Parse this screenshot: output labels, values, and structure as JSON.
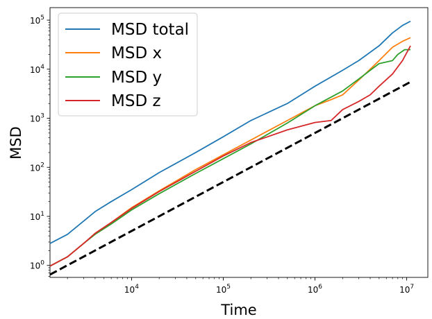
{
  "chart_data": {
    "type": "line",
    "title": "",
    "xlabel": "Time",
    "ylabel": "MSD",
    "xscale": "log",
    "yscale": "log",
    "xlim": [
      1290,
      17000000
    ],
    "ylim": [
      0.57,
      180000
    ],
    "grid": false,
    "legend_position": "top-left",
    "xticks": [
      {
        "value": 10000,
        "base": "10",
        "exp": "4"
      },
      {
        "value": 100000,
        "base": "10",
        "exp": "5"
      },
      {
        "value": 1000000,
        "base": "10",
        "exp": "6"
      },
      {
        "value": 10000000,
        "base": "10",
        "exp": "7"
      }
    ],
    "yticks": [
      {
        "value": 1,
        "base": "10",
        "exp": "0"
      },
      {
        "value": 10,
        "base": "10",
        "exp": "1"
      },
      {
        "value": 100,
        "base": "10",
        "exp": "2"
      },
      {
        "value": 1000,
        "base": "10",
        "exp": "3"
      },
      {
        "value": 10000,
        "base": "10",
        "exp": "4"
      },
      {
        "value": 100000,
        "base": "10",
        "exp": "5"
      }
    ],
    "series": [
      {
        "name": "MSD total",
        "color": "#1f77b4",
        "dash": "solid",
        "points": [
          [
            1290,
            2.8
          ],
          [
            2000,
            4.3
          ],
          [
            3000,
            8.0
          ],
          [
            4000,
            12.5
          ],
          [
            6000,
            20.0
          ],
          [
            10000,
            35.0
          ],
          [
            20000,
            78.0
          ],
          [
            50000,
            200.0
          ],
          [
            100000,
            420.0
          ],
          [
            200000,
            900.0
          ],
          [
            500000,
            2000.0
          ],
          [
            1000000,
            4500.0
          ],
          [
            2000000,
            9500.0
          ],
          [
            3000000,
            15000.0
          ],
          [
            5000000,
            30000.0
          ],
          [
            7000000,
            55000.0
          ],
          [
            9000000,
            78000.0
          ],
          [
            11000000,
            95000.0
          ]
        ]
      },
      {
        "name": "MSD x",
        "color": "#ff7f0e",
        "dash": "solid",
        "points": [
          [
            1290,
            0.97
          ],
          [
            2000,
            1.5
          ],
          [
            3000,
            2.8
          ],
          [
            4000,
            4.5
          ],
          [
            6000,
            7.5
          ],
          [
            10000,
            15.0
          ],
          [
            20000,
            33.0
          ],
          [
            50000,
            90.0
          ],
          [
            100000,
            180.0
          ],
          [
            200000,
            360.0
          ],
          [
            500000,
            900.0
          ],
          [
            1000000,
            1800.0
          ],
          [
            1500000,
            2400.0
          ],
          [
            2000000,
            3000.0
          ],
          [
            3000000,
            6000.0
          ],
          [
            4000000,
            10000.0
          ],
          [
            5000000,
            15000.0
          ],
          [
            7000000,
            28000.0
          ],
          [
            9000000,
            37000.0
          ],
          [
            11000000,
            44000.0
          ]
        ]
      },
      {
        "name": "MSD y",
        "color": "#2ca02c",
        "dash": "solid",
        "points": [
          [
            1290,
            0.97
          ],
          [
            2000,
            1.5
          ],
          [
            3000,
            2.8
          ],
          [
            4000,
            4.3
          ],
          [
            6000,
            7.0
          ],
          [
            10000,
            13.5
          ],
          [
            20000,
            29.0
          ],
          [
            50000,
            75.0
          ],
          [
            100000,
            150.0
          ],
          [
            200000,
            300.0
          ],
          [
            500000,
            800.0
          ],
          [
            1000000,
            1800.0
          ],
          [
            2000000,
            3600.0
          ],
          [
            3000000,
            6300.0
          ],
          [
            4000000,
            9500.0
          ],
          [
            5000000,
            13000.0
          ],
          [
            7000000,
            15000.0
          ],
          [
            8000000,
            20000.0
          ],
          [
            9500000,
            25000.0
          ],
          [
            11000000,
            25000.0
          ]
        ]
      },
      {
        "name": "MSD z",
        "color": "#d62728",
        "dash": "solid",
        "points": [
          [
            1290,
            0.97
          ],
          [
            2000,
            1.5
          ],
          [
            3000,
            2.8
          ],
          [
            4000,
            4.5
          ],
          [
            6000,
            7.5
          ],
          [
            10000,
            14.5
          ],
          [
            20000,
            32.0
          ],
          [
            50000,
            83.0
          ],
          [
            100000,
            170.0
          ],
          [
            200000,
            320.0
          ],
          [
            500000,
            580.0
          ],
          [
            1000000,
            820.0
          ],
          [
            1500000,
            900.0
          ],
          [
            2000000,
            1500.0
          ],
          [
            3000000,
            2200.0
          ],
          [
            4000000,
            3000.0
          ],
          [
            5000000,
            4500.0
          ],
          [
            7000000,
            8000.0
          ],
          [
            9000000,
            15000.0
          ],
          [
            11000000,
            30000.0
          ]
        ]
      },
      {
        "name": "",
        "color": "#000000",
        "dash": "dashed",
        "points": [
          [
            1290,
            0.65
          ],
          [
            11000000,
            5500.0
          ]
        ]
      }
    ]
  }
}
